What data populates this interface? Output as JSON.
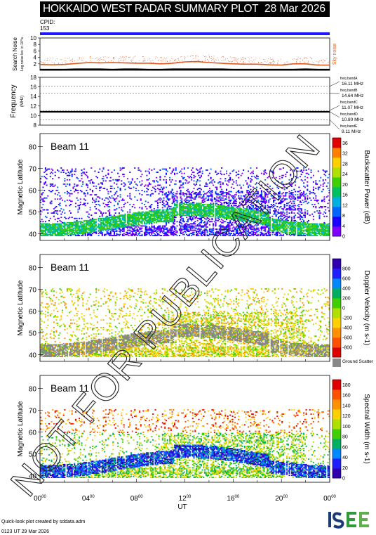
{
  "title": "HOKKAIDO WEST RADAR SUMMARY PLOT",
  "date": "28 Mar 2026",
  "cpid_label": "CPID:",
  "cpid_value": "153",
  "watermark": "NOT FOR PUBLICATION",
  "footer": {
    "line1": "Quick-look plot created by sddata.adm",
    "line2": "0123 UT 29 Mar 2026"
  },
  "logo_text": "ISEE",
  "colors": {
    "cpid_bar": "#1a1aff",
    "sky_noise": "#e05a1e",
    "search_noise": "#000000"
  },
  "chart_data": [
    {
      "type": "line",
      "ylabel": "Search Noise",
      "ylabel_sub": "Log noise lev. in 10^a",
      "yticks": [
        "2",
        "4",
        "6",
        "8",
        "10"
      ],
      "ylim": [
        0,
        10
      ],
      "legend": "Sky noise",
      "x_hours": [
        0,
        1,
        2,
        3,
        4,
        5,
        6,
        7,
        8,
        9,
        10,
        11,
        12,
        13,
        14,
        15,
        16,
        17,
        18,
        19,
        20,
        21,
        22,
        23,
        24
      ],
      "series": [
        {
          "name": "Sky noise",
          "values": [
            1.8,
            1.7,
            1.8,
            2.1,
            2.4,
            2.3,
            2.4,
            2.3,
            2.2,
            2.2,
            2.0,
            2.2,
            2.6,
            2.7,
            2.4,
            2.2,
            2.0,
            1.9,
            1.9,
            1.7,
            1.6,
            2.0,
            2.0,
            1.6,
            1.6
          ]
        },
        {
          "name": "",
          "values": [
            0.2,
            0.2,
            0.2,
            0.3,
            0.3,
            0.3,
            0.2,
            0.3,
            0.3,
            0.2,
            0.2,
            0.3,
            0.3,
            0.3,
            0.3,
            0.3,
            0.2,
            0.2,
            0.2,
            0.2,
            0.2,
            0.2,
            0.3,
            0.2,
            0.2
          ]
        }
      ]
    },
    {
      "type": "line",
      "ylabel": "Frequency",
      "ylabel_sub": "(MHz)",
      "yticks": [
        "8",
        "10",
        "12",
        "14",
        "16",
        "18"
      ],
      "ylim": [
        8,
        18
      ],
      "series": [
        {
          "name": "",
          "values": [
            10.8,
            10.8,
            10.8,
            10.8,
            10.8,
            10.8,
            10.8,
            10.8,
            10.8,
            10.8,
            10.8,
            10.8,
            10.8,
            10.8,
            10.8,
            10.8,
            10.8,
            10.8,
            10.8,
            10.8,
            10.8,
            10.8,
            10.8,
            10.8,
            10.8
          ]
        }
      ],
      "freq_bands": [
        {
          "label": "freq bandA",
          "value_label": "16.11 MHz",
          "freq": 16.11
        },
        {
          "label": "freq bandB",
          "value_label": "14.64 MHz",
          "freq": 14.64
        },
        {
          "label": "freq bandC",
          "value_label": "11.07 MHz",
          "freq": 11.07
        },
        {
          "label": "freq bandD",
          "value_label": "10.80 MHz",
          "freq": 10.8
        },
        {
          "label": "freq bandE",
          "value_label": "9.11 MHz",
          "freq": 9.11
        }
      ]
    },
    {
      "type": "heatmap",
      "panel_label": "Beam 11",
      "ylabel": "Magnetic Latitude",
      "yticks": [
        "40",
        "50",
        "60",
        "70",
        "80"
      ],
      "ylim": [
        37,
        86
      ],
      "xlabel": "UT",
      "xticks": [
        "00",
        "04",
        "08",
        "12",
        "16",
        "20",
        "00"
      ],
      "xtick_sup": "00",
      "colorbar": {
        "label": "Backscatter Power (dB)",
        "ticks": [
          "0",
          "4",
          "8",
          "12",
          "16",
          "20",
          "24",
          "28",
          "32",
          "36"
        ],
        "range": [
          0,
          38
        ],
        "colors": [
          "#7f00ff",
          "#1a00ff",
          "#0066ff",
          "#00b0e0",
          "#00c060",
          "#40d000",
          "#b0e000",
          "#ffd000",
          "#ff8000",
          "#e00000"
        ]
      }
    },
    {
      "type": "heatmap",
      "panel_label": "Beam 11",
      "ylabel": "Magnetic Latitude",
      "yticks": [
        "40",
        "50",
        "60",
        "70",
        "80"
      ],
      "ylim": [
        37,
        86
      ],
      "colorbar": {
        "label": "Doppler Velocity (m s-1)",
        "ticks": [
          "-800",
          "-600",
          "-400",
          "-200",
          "0",
          "200",
          "400",
          "600",
          "800"
        ],
        "range": [
          -1000,
          1000
        ],
        "colors": [
          "#e00000",
          "#ff5000",
          "#ff9000",
          "#ffd000",
          "#b0e000",
          "#40d000",
          "#00b060",
          "#0088ff",
          "#2020ff",
          "#3000b0"
        ],
        "ground_scatter_label": "Ground Scatter",
        "ground_scatter_color": "#888888"
      }
    },
    {
      "type": "heatmap",
      "panel_label": "Beam 11",
      "ylabel": "Magnetic Latitude",
      "yticks": [
        "40",
        "50",
        "60",
        "70",
        "80"
      ],
      "ylim": [
        37,
        86
      ],
      "colorbar": {
        "label": "Spectral Width (m s-1)",
        "ticks": [
          "0",
          "20",
          "40",
          "60",
          "80",
          "100",
          "120",
          "140",
          "160",
          "180"
        ],
        "range": [
          0,
          190
        ],
        "colors": [
          "#3000b0",
          "#2020ff",
          "#0088ff",
          "#00b060",
          "#40d000",
          "#b0e000",
          "#ffd000",
          "#ff9000",
          "#ff5000",
          "#e00000"
        ]
      }
    }
  ]
}
